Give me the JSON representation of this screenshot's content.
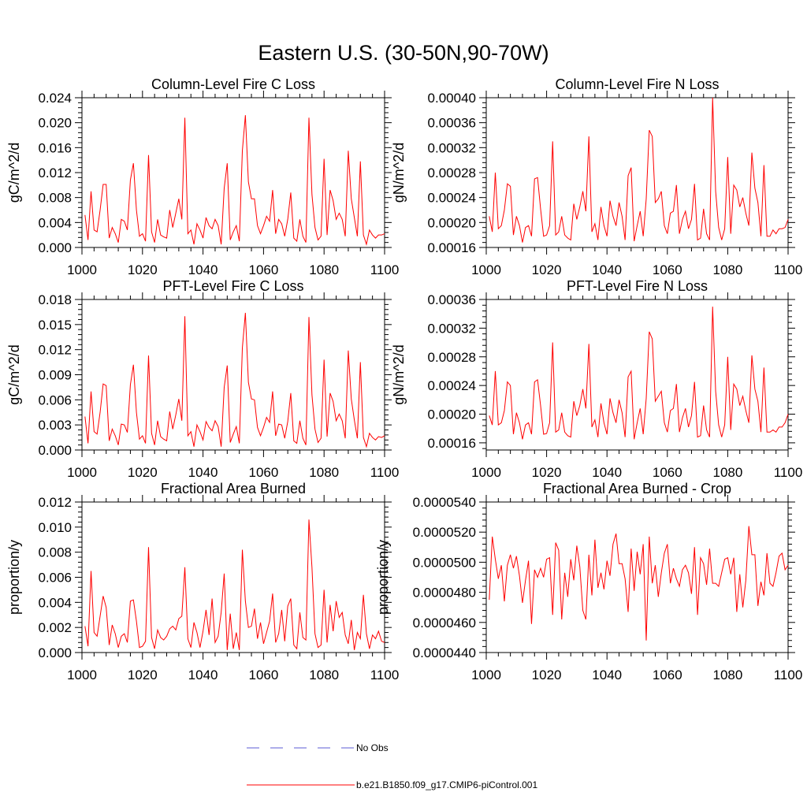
{
  "figure_title": "Eastern U.S. (30-50N,90-70W)",
  "colors": {
    "model": "#ff0000",
    "obs": "#5b5bd6",
    "axis": "#000000"
  },
  "legend": [
    {
      "label": "No Obs",
      "color": "#5b5bd6",
      "dash": "dashed"
    },
    {
      "label": "b.e21.B1850.f09_g17.CMIP6-piControl.001",
      "color": "#ff0000",
      "dash": "solid"
    }
  ],
  "chart_data": [
    {
      "type": "line",
      "title": "Column-Level Fire C Loss",
      "xlabel": "",
      "ylabel": "gC/m^2/d",
      "xlim": [
        1000,
        1100
      ],
      "ylim": [
        0.0,
        0.024
      ],
      "xticks": [
        "1000",
        "1020",
        "1040",
        "1060",
        "1080",
        "1100"
      ],
      "yticks": [
        "0.000",
        "0.004",
        "0.008",
        "0.012",
        "0.016",
        "0.020",
        "0.024"
      ],
      "x_start": 1001,
      "series": [
        {
          "values": [
            0.0052,
            0.0012,
            0.009,
            0.0028,
            0.0025,
            0.006,
            0.0101,
            0.0101,
            0.0015,
            0.0032,
            0.0022,
            0.0008,
            0.0045,
            0.0042,
            0.0028,
            0.0108,
            0.0135,
            0.006,
            0.0018,
            0.0022,
            0.001,
            0.0148,
            0.0025,
            0.0008,
            0.0045,
            0.002,
            0.0017,
            0.0015,
            0.006,
            0.0032,
            0.0055,
            0.0078,
            0.0045,
            0.0208,
            0.0022,
            0.0028,
            0.0005,
            0.0038,
            0.0028,
            0.0015,
            0.0048,
            0.0035,
            0.003,
            0.0045,
            0.0035,
            0.0005,
            0.0095,
            0.0135,
            0.0012,
            0.0025,
            0.0035,
            0.001,
            0.0155,
            0.0212,
            0.0105,
            0.0078,
            0.0078,
            0.0035,
            0.0022,
            0.0035,
            0.005,
            0.0042,
            0.0092,
            0.0022,
            0.0045,
            0.0038,
            0.0018,
            0.0045,
            0.0088,
            0.0015,
            0.001,
            0.0045,
            0.0018,
            0.0008,
            0.0208,
            0.0085,
            0.0032,
            0.0012,
            0.0018,
            0.0142,
            0.002,
            0.0092,
            0.0075,
            0.0045,
            0.0055,
            0.0045,
            0.0018,
            0.0155,
            0.0078,
            0.0048,
            0.0018,
            0.0138,
            0.002,
            0.0005,
            0.0028,
            0.002,
            0.0015,
            0.002,
            0.002,
            0.0022
          ]
        }
      ]
    },
    {
      "type": "line",
      "title": "Column-Level Fire N Loss",
      "xlabel": "",
      "ylabel": "gN/m^2/d",
      "xlim": [
        1000,
        1100
      ],
      "ylim": [
        0.00016,
        0.0004
      ],
      "xticks": [
        "1000",
        "1020",
        "1040",
        "1060",
        "1080",
        "1100"
      ],
      "yticks": [
        "0.00016",
        "0.00020",
        "0.00024",
        "0.00028",
        "0.00032",
        "0.00036",
        "0.00040"
      ],
      "x_start": 1001,
      "series": [
        {
          "values": [
            0.00021,
            0.000185,
            0.00028,
            0.00019,
            0.000195,
            0.00022,
            0.000262,
            0.000258,
            0.00018,
            0.00021,
            0.000195,
            0.000168,
            0.000192,
            0.000195,
            0.000178,
            0.00027,
            0.000272,
            0.000222,
            0.000178,
            0.00018,
            0.000195,
            0.00033,
            0.00018,
            0.000185,
            0.00021,
            0.00018,
            0.000175,
            0.000172,
            0.00023,
            0.000205,
            0.000225,
            0.00025,
            0.000218,
            0.000338,
            0.000185,
            0.000198,
            0.000172,
            0.000225,
            0.000195,
            0.000178,
            0.000235,
            0.00021,
            0.000195,
            0.000232,
            0.00021,
            0.000172,
            0.000275,
            0.000288,
            0.00017,
            0.000195,
            0.000218,
            0.000178,
            0.000238,
            0.000348,
            0.000338,
            0.000232,
            0.000238,
            0.00025,
            0.000195,
            0.000182,
            0.000215,
            0.000218,
            0.00026,
            0.000182,
            0.000205,
            0.000218,
            0.00019,
            0.000205,
            0.000262,
            0.000172,
            0.000175,
            0.000222,
            0.000182,
            0.000172,
            0.0004,
            0.00025,
            0.000192,
            0.000172,
            0.00019,
            0.000305,
            0.000182,
            0.00026,
            0.000252,
            0.000225,
            0.00024,
            0.000215,
            0.000195,
            0.000312,
            0.000255,
            0.000232,
            0.000178,
            0.000292,
            0.000178,
            0.000178,
            0.000188,
            0.000182,
            0.00019,
            0.00019,
            0.000192,
            0.000205
          ]
        }
      ]
    },
    {
      "type": "line",
      "title": "PFT-Level Fire C Loss",
      "xlabel": "",
      "ylabel": "gC/m^2/d",
      "xlim": [
        1000,
        1100
      ],
      "ylim": [
        0.0,
        0.018
      ],
      "xticks": [
        "1000",
        "1020",
        "1040",
        "1060",
        "1080",
        "1100"
      ],
      "yticks": [
        "0.000",
        "0.003",
        "0.006",
        "0.009",
        "0.012",
        "0.015",
        "0.018"
      ],
      "x_start": 1001,
      "series": [
        {
          "values": [
            0.004,
            0.0008,
            0.007,
            0.0022,
            0.0019,
            0.0045,
            0.0079,
            0.0077,
            0.0011,
            0.0025,
            0.0017,
            0.0006,
            0.0031,
            0.003,
            0.0021,
            0.0078,
            0.0102,
            0.0045,
            0.0013,
            0.0017,
            0.0008,
            0.0113,
            0.002,
            0.0006,
            0.0035,
            0.0016,
            0.0013,
            0.0011,
            0.0046,
            0.0025,
            0.0042,
            0.0061,
            0.0035,
            0.016,
            0.0017,
            0.0022,
            0.0004,
            0.003,
            0.0022,
            0.0012,
            0.0034,
            0.0027,
            0.0023,
            0.0035,
            0.0028,
            0.0004,
            0.0075,
            0.0101,
            0.0009,
            0.0019,
            0.0028,
            0.0008,
            0.0122,
            0.0164,
            0.0081,
            0.0061,
            0.006,
            0.0027,
            0.0017,
            0.0027,
            0.0039,
            0.0033,
            0.007,
            0.0017,
            0.0031,
            0.003,
            0.0014,
            0.0034,
            0.0068,
            0.0011,
            0.0008,
            0.0035,
            0.0014,
            0.0006,
            0.0159,
            0.0066,
            0.0025,
            0.0009,
            0.0014,
            0.0108,
            0.0016,
            0.0068,
            0.0058,
            0.0035,
            0.0043,
            0.0035,
            0.0014,
            0.0119,
            0.0061,
            0.0036,
            0.0014,
            0.0105,
            0.0015,
            0.0004,
            0.002,
            0.0015,
            0.0012,
            0.0016,
            0.0015,
            0.0017
          ]
        }
      ]
    },
    {
      "type": "line",
      "title": "PFT-Level Fire N Loss",
      "xlabel": "",
      "ylabel": "gN/m^2/d",
      "xlim": [
        1000,
        1100
      ],
      "ylim": [
        0.00015,
        0.00036
      ],
      "xticks": [
        "1000",
        "1020",
        "1040",
        "1060",
        "1080",
        "1100"
      ],
      "yticks": [
        "0.00016",
        "0.00020",
        "0.00024",
        "0.00028",
        "0.00032",
        "0.00036"
      ],
      "x_start": 1001,
      "series": [
        {
          "values": [
            0.000198,
            0.000185,
            0.00026,
            0.000185,
            0.000188,
            0.000205,
            0.000245,
            0.00024,
            0.000172,
            0.000202,
            0.000188,
            0.000165,
            0.000185,
            0.000188,
            0.000172,
            0.000245,
            0.000248,
            0.000212,
            0.000172,
            0.000173,
            0.000188,
            0.0003,
            0.000175,
            0.000178,
            0.000202,
            0.000175,
            0.00017,
            0.000168,
            0.000218,
            0.000198,
            0.000212,
            0.000235,
            0.000208,
            0.000298,
            0.000182,
            0.000192,
            0.000168,
            0.000215,
            0.000188,
            0.000172,
            0.000222,
            0.000202,
            0.000188,
            0.00022,
            0.000202,
            0.000168,
            0.000252,
            0.00026,
            0.000165,
            0.000188,
            0.000208,
            0.000172,
            0.000222,
            0.000315,
            0.000305,
            0.000218,
            0.000225,
            0.000232,
            0.000188,
            0.000175,
            0.000205,
            0.000208,
            0.000242,
            0.000175,
            0.000195,
            0.000208,
            0.000182,
            0.000198,
            0.000245,
            0.000168,
            0.00017,
            0.000212,
            0.000178,
            0.000168,
            0.00035,
            0.000232,
            0.000185,
            0.000168,
            0.000185,
            0.00028,
            0.000178,
            0.000242,
            0.000235,
            0.000212,
            0.000225,
            0.000205,
            0.000188,
            0.000282,
            0.000235,
            0.000218,
            0.000175,
            0.000265,
            0.000175,
            0.000175,
            0.000178,
            0.000175,
            0.000182,
            0.000182,
            0.000188,
            0.0002
          ]
        }
      ]
    },
    {
      "type": "line",
      "title": "Fractional Area Burned",
      "xlabel": "",
      "ylabel": "proportion/y",
      "xlim": [
        1000,
        1100
      ],
      "ylim": [
        0.0,
        0.012
      ],
      "xticks": [
        "1000",
        "1020",
        "1040",
        "1060",
        "1080",
        "1100"
      ],
      "yticks": [
        "0.000",
        "0.002",
        "0.004",
        "0.006",
        "0.008",
        "0.010",
        "0.012"
      ],
      "x_start": 1001,
      "series": [
        {
          "values": [
            0.0021,
            0.0005,
            0.0065,
            0.0016,
            0.0013,
            0.0029,
            0.0045,
            0.0036,
            0.0006,
            0.0022,
            0.0015,
            0.0004,
            0.0013,
            0.0015,
            0.0008,
            0.0041,
            0.0042,
            0.0025,
            0.0004,
            0.0005,
            0.0009,
            0.0084,
            0.0012,
            0.0003,
            0.0018,
            0.0012,
            0.001,
            0.0013,
            0.0019,
            0.0021,
            0.0018,
            0.0027,
            0.0029,
            0.0068,
            0.0011,
            0.0004,
            0.0024,
            0.0016,
            0.0004,
            0.0017,
            0.0034,
            0.0014,
            0.0043,
            0.0008,
            0.0013,
            0.0032,
            0.0063,
            0.0002,
            0.0031,
            0.0003,
            0.0016,
            0.0002,
            0.0082,
            0.0041,
            0.002,
            0.0021,
            0.0035,
            0.0011,
            0.0024,
            0.0007,
            0.0016,
            0.0025,
            0.0047,
            0.0008,
            0.0015,
            0.0034,
            0.0009,
            0.0037,
            0.0043,
            0.0006,
            0.0003,
            0.0032,
            0.0012,
            0.001,
            0.0106,
            0.0068,
            0.0015,
            0.0004,
            0.0006,
            0.005,
            0.0008,
            0.0038,
            0.0017,
            0.0041,
            0.0028,
            0.0032,
            0.0014,
            0.0007,
            0.0026,
            0.0002,
            0.0016,
            0.0011,
            0.0046,
            0.0015,
            0.0003,
            0.0014,
            0.0011,
            0.0017,
            0.0009,
            0.0008
          ]
        }
      ]
    },
    {
      "type": "line",
      "title": "Fractional Area Burned - Crop",
      "xlabel": "",
      "ylabel": "proportion/y",
      "xlim": [
        1000,
        1100
      ],
      "ylim": [
        4.4e-05,
        5.4e-05
      ],
      "xticks": [
        "1000",
        "1020",
        "1040",
        "1060",
        "1080",
        "1100"
      ],
      "yticks": [
        "0.0000440",
        "0.0000460",
        "0.0000480",
        "0.0000500",
        "0.0000520",
        "0.0000540"
      ],
      "x_start": 1001,
      "series": [
        {
          "values": [
            4.75e-05,
            5.17e-05,
            5.02e-05,
            4.89e-05,
            4.98e-05,
            4.74e-05,
            4.98e-05,
            5.05e-05,
            4.96e-05,
            5.04e-05,
            4.91e-05,
            4.73e-05,
            4.88e-05,
            5.01e-05,
            4.59e-05,
            4.95e-05,
            4.9e-05,
            4.96e-05,
            4.9e-05,
            5.02e-05,
            5.03e-05,
            4.65e-05,
            5.13e-05,
            5.08e-05,
            4.62e-05,
            4.93e-05,
            4.77e-05,
            5.02e-05,
            4.88e-05,
            5.11e-05,
            4.97e-05,
            4.68e-05,
            4.62e-05,
            5.05e-05,
            4.78e-05,
            5.15e-05,
            4.83e-05,
            4.93e-05,
            4.82e-05,
            5.01e-05,
            4.91e-05,
            5.12e-05,
            5.19e-05,
            4.99e-05,
            4.99e-05,
            4.89e-05,
            4.67e-05,
            5.09e-05,
            4.81e-05,
            5.07e-05,
            4.92e-05,
            5.12e-05,
            4.48e-05,
            5.17e-05,
            4.86e-05,
            4.98e-05,
            4.77e-05,
            4.93e-05,
            5.06e-05,
            5.12e-05,
            4.86e-05,
            4.96e-05,
            4.89e-05,
            4.84e-05,
            4.95e-05,
            4.98e-05,
            4.93e-05,
            4.79e-05,
            5.1e-05,
            4.65e-05,
            5.03e-05,
            4.99e-05,
            4.85e-05,
            5.09e-05,
            4.86e-05,
            4.86e-05,
            4.84e-05,
            4.93e-05,
            5.02e-05,
            5.03e-05,
            4.92e-05,
            5.03e-05,
            4.67e-05,
            4.92e-05,
            4.7e-05,
            4.88e-05,
            5.24e-05,
            5.05e-05,
            5.05e-05,
            4.71e-05,
            4.87e-05,
            4.78e-05,
            5.06e-05,
            4.86e-05,
            4.84e-05,
            4.93e-05,
            5.04e-05,
            5.06e-05,
            4.95e-05,
            4.98e-05
          ]
        }
      ]
    }
  ]
}
